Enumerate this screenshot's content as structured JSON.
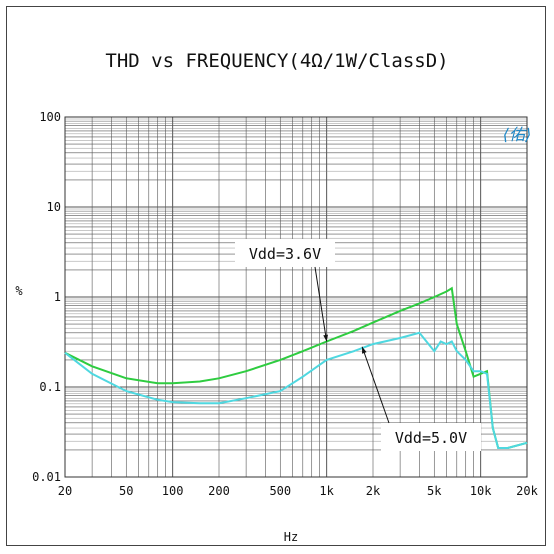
{
  "chart_data": {
    "type": "line",
    "title": "THD vs FREQUENCY(4Ω/1W/ClassD)",
    "xlabel": "Hz",
    "ylabel": "%",
    "xscale": "log",
    "yscale": "log",
    "xlim": [
      20,
      20000
    ],
    "ylim": [
      0.01,
      100
    ],
    "grid": true,
    "x_ticks": [
      {
        "value": 20,
        "label": "20"
      },
      {
        "value": 50,
        "label": "50"
      },
      {
        "value": 100,
        "label": "100"
      },
      {
        "value": 200,
        "label": "200"
      },
      {
        "value": 500,
        "label": "500"
      },
      {
        "value": 1000,
        "label": "1k"
      },
      {
        "value": 2000,
        "label": "2k"
      },
      {
        "value": 5000,
        "label": "5k"
      },
      {
        "value": 10000,
        "label": "10k"
      },
      {
        "value": 20000,
        "label": "20k"
      }
    ],
    "y_ticks": [
      {
        "value": 0.01,
        "label": "0.01"
      },
      {
        "value": 0.1,
        "label": "0.1"
      },
      {
        "value": 1,
        "label": "1"
      },
      {
        "value": 10,
        "label": "10"
      },
      {
        "value": 100,
        "label": "100"
      }
    ],
    "series": [
      {
        "name": "Vdd=3.6V",
        "color": "#2ecc40",
        "x": [
          20,
          30,
          50,
          80,
          100,
          150,
          200,
          300,
          500,
          700,
          1000,
          1500,
          2000,
          3000,
          4000,
          5000,
          6000,
          6500,
          7000,
          8000,
          9000,
          10000,
          11000,
          12000,
          13000,
          15000,
          20000
        ],
        "y": [
          0.24,
          0.17,
          0.125,
          0.11,
          0.11,
          0.115,
          0.125,
          0.15,
          0.2,
          0.25,
          0.32,
          0.42,
          0.52,
          0.7,
          0.85,
          1.0,
          1.15,
          1.25,
          0.5,
          0.25,
          0.13,
          0.14,
          0.15,
          0.035,
          0.021,
          0.021,
          0.024
        ]
      },
      {
        "name": "Vdd=5.0V",
        "color": "#4fd8e0",
        "x": [
          20,
          30,
          50,
          80,
          100,
          150,
          200,
          300,
          500,
          700,
          1000,
          1500,
          2000,
          3000,
          4000,
          5000,
          5500,
          6000,
          6500,
          7000,
          8000,
          9000,
          10000,
          11000,
          12000,
          13000,
          15000,
          20000
        ],
        "y": [
          0.24,
          0.14,
          0.09,
          0.072,
          0.068,
          0.066,
          0.066,
          0.075,
          0.09,
          0.13,
          0.2,
          0.25,
          0.3,
          0.35,
          0.4,
          0.25,
          0.32,
          0.3,
          0.32,
          0.25,
          0.2,
          0.15,
          0.15,
          0.14,
          0.035,
          0.021,
          0.021,
          0.024
        ]
      }
    ],
    "annotations": [
      {
        "text": "Vdd=3.6V",
        "series": "Vdd=3.6V"
      },
      {
        "text": "Vdd=5.0V",
        "series": "Vdd=5.0V"
      }
    ],
    "stamp": "佑"
  }
}
